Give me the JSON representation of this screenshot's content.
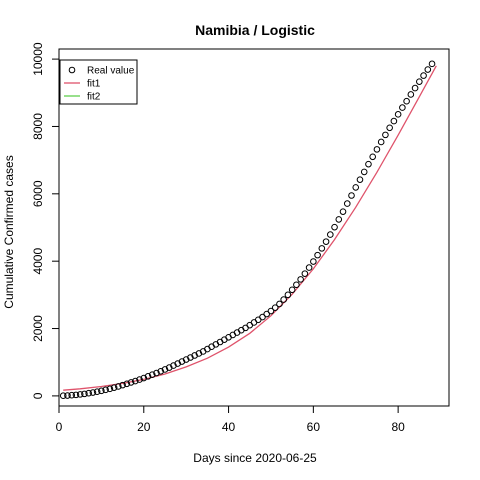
{
  "chart_data": {
    "type": "scatter",
    "title": "Namibia / Logistic",
    "xlabel": "Days since 2020-06-25",
    "ylabel": "Cumulative Confirmed cases",
    "xlim": [
      0,
      92
    ],
    "ylim": [
      -300,
      10300
    ],
    "x_ticks": [
      0,
      20,
      40,
      60,
      80
    ],
    "y_ticks": [
      0,
      2000,
      4000,
      6000,
      8000,
      10000
    ],
    "grid": false,
    "legend_position": "top-left",
    "legend": [
      {
        "label": "Real value",
        "marker": "circle-open",
        "color": "#000000"
      },
      {
        "label": "fit1",
        "marker": "line",
        "color": "#df536b"
      },
      {
        "label": "fit2",
        "marker": "line",
        "color": "#61d04f"
      }
    ],
    "series": [
      {
        "name": "Real value",
        "kind": "points",
        "color": "#000000",
        "x": [
          1,
          2,
          3,
          4,
          5,
          6,
          7,
          8,
          9,
          10,
          11,
          12,
          13,
          14,
          15,
          16,
          17,
          18,
          19,
          20,
          21,
          22,
          23,
          24,
          25,
          26,
          27,
          28,
          29,
          30,
          31,
          32,
          33,
          34,
          35,
          36,
          37,
          38,
          39,
          40,
          41,
          42,
          43,
          44,
          45,
          46,
          47,
          48,
          49,
          50,
          51,
          52,
          53,
          54,
          55,
          56,
          57,
          58,
          59,
          60,
          61,
          62,
          63,
          64,
          65,
          66,
          67,
          68,
          69,
          70,
          71,
          72,
          73,
          74,
          75,
          76,
          77,
          78,
          79,
          80,
          81,
          82,
          83,
          84,
          85,
          86,
          87,
          88
        ],
        "y": [
          5,
          10,
          20,
          30,
          45,
          60,
          80,
          100,
          125,
          150,
          180,
          210,
          245,
          280,
          320,
          360,
          400,
          440,
          485,
          530,
          580,
          630,
          680,
          730,
          785,
          840,
          900,
          960,
          1020,
          1080,
          1140,
          1200,
          1260,
          1320,
          1390,
          1460,
          1530,
          1600,
          1670,
          1740,
          1810,
          1880,
          1950,
          2020,
          2100,
          2180,
          2260,
          2340,
          2430,
          2520,
          2620,
          2730,
          2860,
          3000,
          3150,
          3300,
          3460,
          3630,
          3810,
          3990,
          4180,
          4380,
          4580,
          4790,
          5010,
          5240,
          5470,
          5710,
          5950,
          6190,
          6420,
          6650,
          6880,
          7100,
          7320,
          7540,
          7750,
          7960,
          8160,
          8360,
          8560,
          8750,
          8950,
          9140,
          9330,
          9510,
          9690,
          9860
        ]
      },
      {
        "name": "fit1",
        "kind": "line",
        "color": "#df536b",
        "x": [
          1,
          5,
          10,
          15,
          20,
          25,
          30,
          35,
          40,
          45,
          50,
          55,
          60,
          65,
          70,
          75,
          80,
          85,
          89
        ],
        "y": [
          170,
          210,
          280,
          370,
          490,
          650,
          860,
          1120,
          1450,
          1860,
          2380,
          3020,
          3770,
          4640,
          5600,
          6640,
          7740,
          8880,
          9800
        ]
      },
      {
        "name": "fit2",
        "kind": "line",
        "color": "#61d04f",
        "x": [],
        "y": []
      }
    ]
  }
}
